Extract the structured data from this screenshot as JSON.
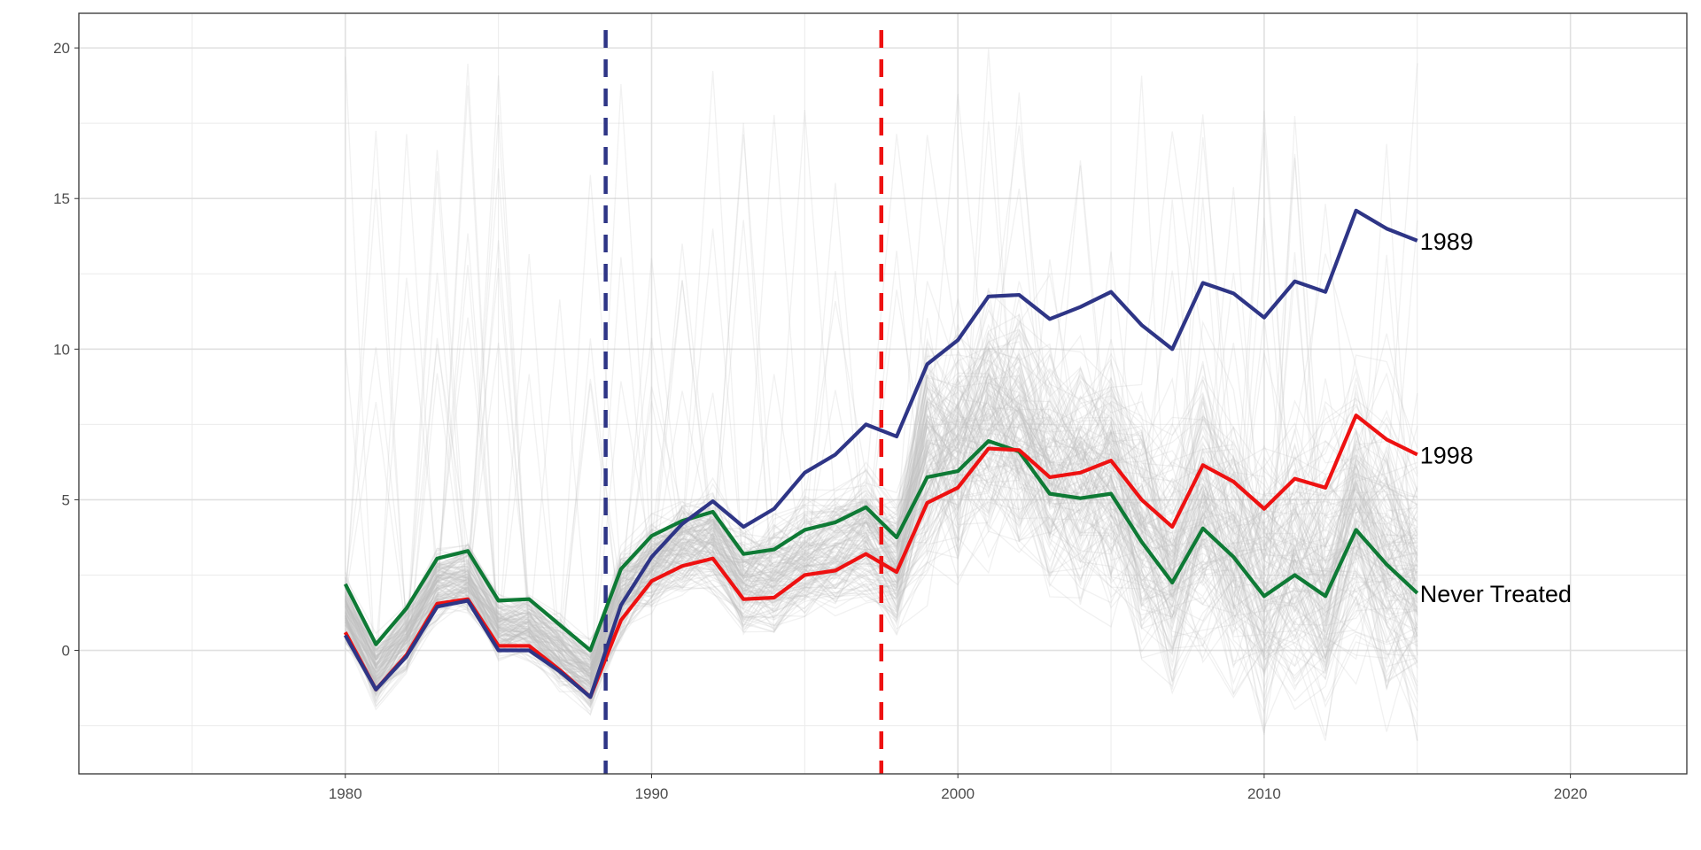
{
  "chart_data": {
    "type": "line",
    "title": "",
    "xlabel": "",
    "ylabel": "",
    "xlim": [
      1971.3,
      2023.8
    ],
    "ylim": [
      -4.1,
      21.15
    ],
    "grid": true,
    "x_ticks": [
      1980,
      1990,
      2000,
      2010,
      2020
    ],
    "y_ticks": [
      0,
      5,
      10,
      15,
      20
    ],
    "x": [
      1980,
      1981,
      1982,
      1983,
      1984,
      1985,
      1986,
      1987,
      1988,
      1989,
      1990,
      1991,
      1992,
      1993,
      1994,
      1995,
      1996,
      1997,
      1998,
      1999,
      2000,
      2001,
      2002,
      2003,
      2004,
      2005,
      2006,
      2007,
      2008,
      2009,
      2010,
      2011,
      2012,
      2013,
      2014,
      2015
    ],
    "series": [
      {
        "name": "1989",
        "color": "#2E3586",
        "values": [
          0.5,
          -1.3,
          -0.2,
          1.45,
          1.65,
          0.0,
          0.0,
          -0.7,
          -1.55,
          1.5,
          3.1,
          4.2,
          4.95,
          4.1,
          4.7,
          5.9,
          6.5,
          7.5,
          7.1,
          9.5,
          10.3,
          11.75,
          11.8,
          11.0,
          11.4,
          11.9,
          10.8,
          10.0,
          12.2,
          11.85,
          11.05,
          12.25,
          11.9,
          14.6,
          14.0,
          13.6
        ]
      },
      {
        "name": "1998",
        "color": "#EE1111",
        "values": [
          0.6,
          -1.3,
          -0.15,
          1.55,
          1.7,
          0.15,
          0.15,
          -0.65,
          -1.55,
          1.0,
          2.3,
          2.8,
          3.05,
          1.7,
          1.75,
          2.5,
          2.65,
          3.2,
          2.6,
          4.9,
          5.4,
          6.7,
          6.65,
          5.75,
          5.9,
          6.3,
          5.0,
          4.1,
          6.15,
          5.6,
          4.7,
          5.7,
          5.4,
          7.8,
          7.0,
          6.5
        ]
      },
      {
        "name": "Never Treated",
        "color": "#0E7A35",
        "values": [
          2.2,
          0.2,
          1.4,
          3.05,
          3.3,
          1.65,
          1.7,
          0.85,
          0.0,
          2.7,
          3.8,
          4.3,
          4.6,
          3.2,
          3.35,
          4.0,
          4.25,
          4.75,
          3.75,
          5.75,
          5.95,
          6.95,
          6.6,
          5.2,
          5.05,
          5.2,
          3.6,
          2.25,
          4.05,
          3.1,
          1.8,
          2.5,
          1.8,
          4.0,
          2.85,
          1.9
        ]
      }
    ],
    "vlines": [
      {
        "x": 1988.5,
        "color": "#2E3586",
        "style": "dashed"
      },
      {
        "x": 1997.5,
        "color": "#EE1111",
        "style": "dashed"
      }
    ],
    "legend": "direct-labels-right"
  }
}
